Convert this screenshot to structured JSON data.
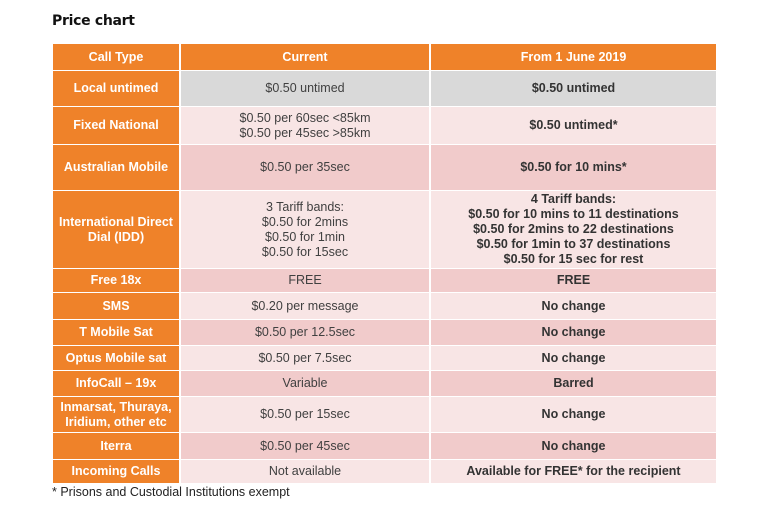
{
  "title": "Price chart",
  "headers": [
    "Call Type",
    "Current",
    "From 1 June 2019"
  ],
  "rows": [
    {
      "type": "Local untimed",
      "current": "$0.50 untimed",
      "new": "$0.50 untimed",
      "shade": "grey"
    },
    {
      "type": "Fixed National",
      "current": "$0.50 per 60sec <85km\n$0.50 per 45sec >85km",
      "new": "$0.50 untimed*",
      "shade": "light"
    },
    {
      "type": "Australian Mobile",
      "current": "$0.50 per 35sec",
      "new": "$0.50 for 10 mins*",
      "shade": "dark"
    },
    {
      "type": "International Direct Dial (IDD)",
      "current": "3 Tariff bands:\n$0.50 for 2mins\n$0.50 for 1min\n$0.50 for 15sec",
      "new": "4 Tariff bands:\n$0.50 for 10 mins to 11 destinations\n$0.50 for 2mins to 22 destinations\n$0.50 for 1min to 37 destinations\n$0.50 for 15 sec for rest",
      "shade": "light"
    },
    {
      "type": "Free 18x",
      "current": "FREE",
      "new": "FREE",
      "shade": "dark"
    },
    {
      "type": "SMS",
      "current": "$0.20 per message",
      "new": "No change",
      "shade": "light"
    },
    {
      "type": "T Mobile Sat",
      "current": "$0.50 per 12.5sec",
      "new": "No change",
      "shade": "dark"
    },
    {
      "type": "Optus Mobile sat",
      "current": "$0.50 per 7.5sec",
      "new": "No change",
      "shade": "light"
    },
    {
      "type": "InfoCall – 19x",
      "current": "Variable",
      "new": "Barred",
      "shade": "dark"
    },
    {
      "type": "Inmarsat, Thuraya, Iridium, other etc",
      "current": "$0.50 per 15sec",
      "new": "No change",
      "shade": "light"
    },
    {
      "type": "Iterra",
      "current": "$0.50 per 45sec",
      "new": "No change",
      "shade": "dark"
    },
    {
      "type": "Incoming Calls",
      "current": "Not available",
      "new": "Available for FREE* for the recipient",
      "shade": "light"
    }
  ],
  "footnote": "* Prisons and Custodial Institutions exempt",
  "colors": {
    "header": "#ef8229",
    "grey": "#d9d9d9",
    "light": "#f8e5e5",
    "dark": "#f1cbcb"
  }
}
